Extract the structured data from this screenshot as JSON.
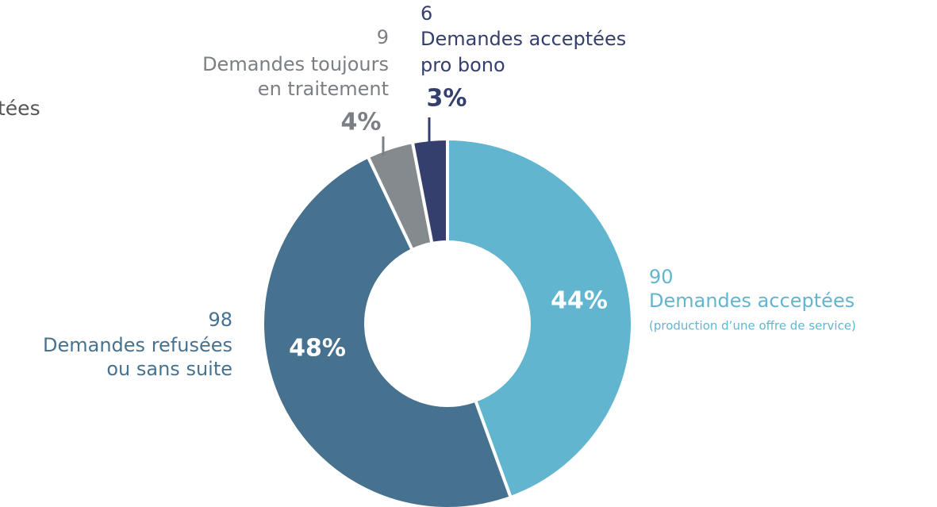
{
  "chart_data": {
    "type": "donut",
    "categories": [
      [
        "Demandes acceptées"
      ],
      [
        "Demandes refusées",
        "ou sans suite"
      ],
      [
        "Demandes toujours",
        "en traitement"
      ],
      [
        "Demandes acceptées",
        "pro bono"
      ]
    ],
    "counts": [
      90,
      98,
      9,
      6
    ],
    "values": [
      44,
      48,
      4,
      3
    ],
    "value_labels": [
      "44%",
      "48%",
      "4%",
      "3%"
    ],
    "colors": [
      "#62b5cf",
      "#467290",
      "#858a8f",
      "#343f6e"
    ],
    "annotations": [
      "(production d’une offre de service)",
      "tées"
    ]
  }
}
